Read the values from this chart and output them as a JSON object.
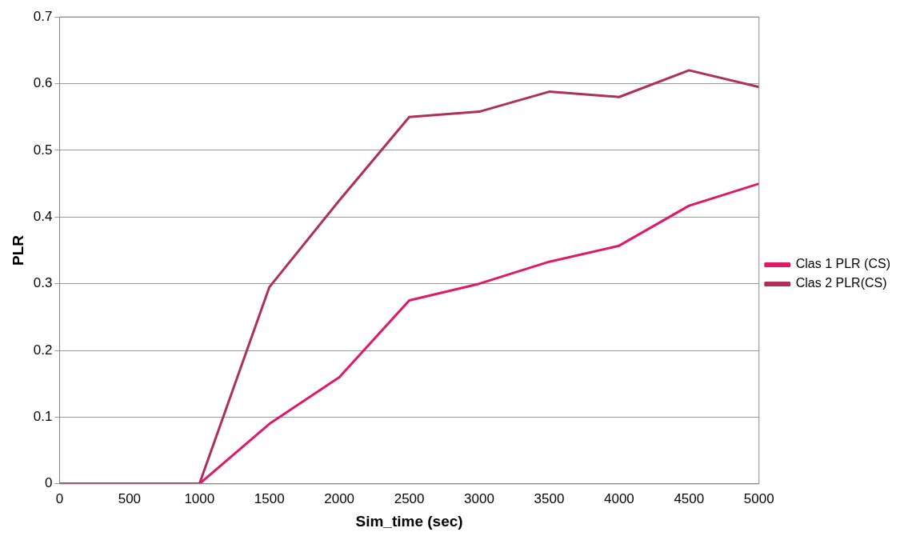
{
  "chart_data": {
    "type": "line",
    "xlabel": "Sim_time (sec)",
    "ylabel": "PLR",
    "x": [
      0,
      500,
      1000,
      1500,
      2000,
      2500,
      3000,
      3500,
      4000,
      4500,
      5000
    ],
    "series": [
      {
        "name": "Clas 1 PLR (CS)",
        "color": "#e0186a",
        "values": [
          0,
          0,
          0,
          0.09,
          0.16,
          0.275,
          0.3,
          0.333,
          0.357,
          0.417,
          0.45
        ]
      },
      {
        "name": "Clas 2 PLR(CS)",
        "color": "#b02e5c",
        "values": [
          0,
          0,
          0,
          0.295,
          0.425,
          0.55,
          0.558,
          0.588,
          0.58,
          0.62,
          0.595
        ]
      }
    ],
    "xlim": [
      0,
      5000
    ],
    "xticks": [
      0,
      500,
      1000,
      1500,
      2000,
      2500,
      3000,
      3500,
      4000,
      4500,
      5000
    ],
    "ylim": [
      0,
      0.7
    ],
    "yticks": [
      0,
      0.1,
      0.2,
      0.3,
      0.4,
      0.5,
      0.6,
      0.7
    ],
    "grid": "y",
    "legend": "right",
    "marker": "none",
    "line_style": "solid"
  }
}
